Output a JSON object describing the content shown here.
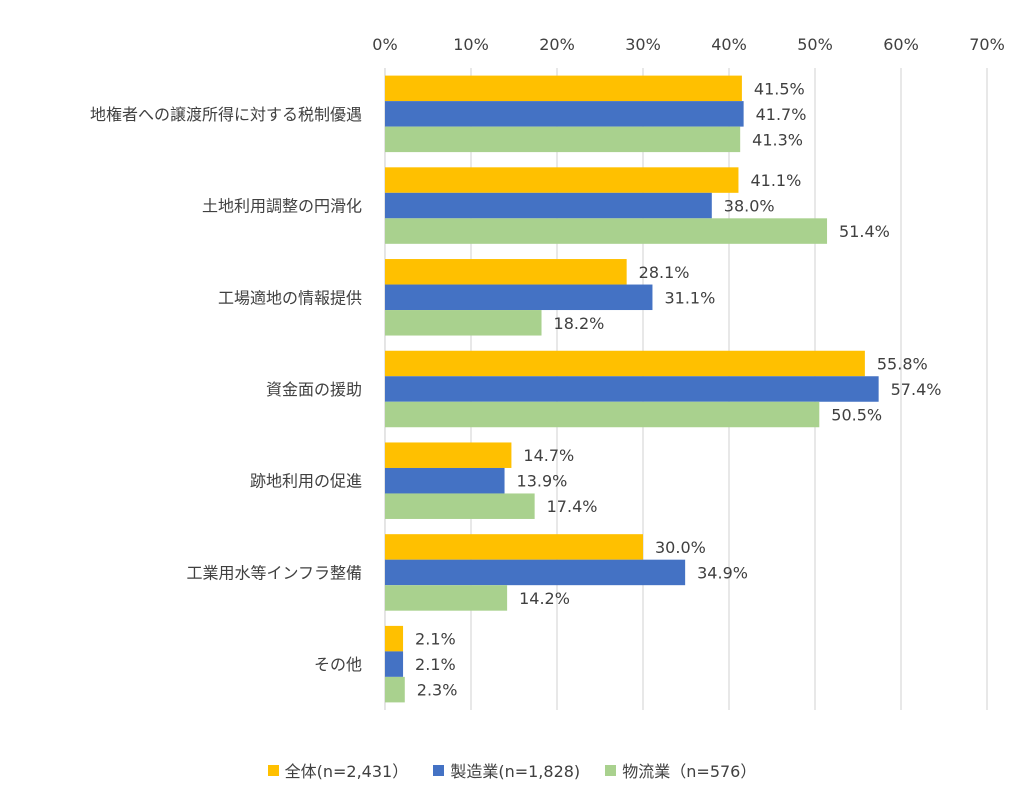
{
  "chart_data": {
    "type": "bar",
    "orientation": "horizontal",
    "categories": [
      "地権者への譲渡所得に対する税制優遇",
      "土地利用調整の円滑化",
      "工場適地の情報提供",
      "資金面の援助",
      "跡地利用の促進",
      "工業用水等インフラ整備",
      "その他"
    ],
    "series": [
      {
        "name": "全体(n=2,431）",
        "color": "#FFC000",
        "values": [
          41.5,
          41.1,
          28.1,
          55.8,
          14.7,
          30.0,
          2.1
        ]
      },
      {
        "name": "製造業(n=1,828)",
        "color": "#4472C4",
        "values": [
          41.7,
          38.0,
          31.1,
          57.4,
          13.9,
          34.9,
          2.1
        ]
      },
      {
        "name": "物流業（n=576）",
        "color": "#A9D18E",
        "values": [
          41.3,
          51.4,
          18.2,
          50.5,
          17.4,
          14.2,
          2.3
        ]
      }
    ],
    "data_labels": [
      [
        "41.5%",
        "41.1%",
        "28.1%",
        "55.8%",
        "14.7%",
        "30.0%",
        "2.1%"
      ],
      [
        "41.7%",
        "38.0%",
        "31.1%",
        "57.4%",
        "13.9%",
        "34.9%",
        "2.1%"
      ],
      [
        "41.3%",
        "51.4%",
        "18.2%",
        "50.5%",
        "17.4%",
        "14.2%",
        "2.3%"
      ]
    ],
    "xlim": [
      0,
      70
    ],
    "x_ticks": [
      0,
      10,
      20,
      30,
      40,
      50,
      60,
      70
    ],
    "x_tick_labels": [
      "0%",
      "10%",
      "20%",
      "30%",
      "40%",
      "50%",
      "60%",
      "70%"
    ],
    "x_axis_position": "top",
    "grid": true,
    "grid_color": "#D9D9D9",
    "legend_position": "bottom",
    "title": "",
    "xlabel": "",
    "ylabel": ""
  }
}
